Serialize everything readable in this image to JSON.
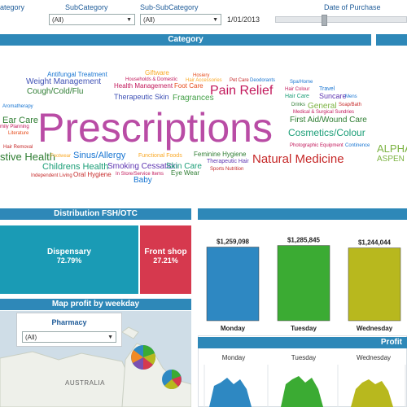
{
  "filters": {
    "category_label": "ategory",
    "subcategory_label": "SubCategory",
    "subcategory_value": "(All)",
    "subsubcategory_label": "Sub-SubCategory",
    "subsubcategory_value": "(All)",
    "date_value": "1/01/2013",
    "date_label": "Date of Purchase"
  },
  "category_panel": {
    "title": "Category",
    "words": [
      {
        "text": "Prescriptions",
        "color": "#b94ca5"
      },
      {
        "text": "Pain Relief",
        "color": "#c2185b"
      },
      {
        "text": "Natural Medicine",
        "color": "#c62828"
      },
      {
        "text": "Sinus/Allergy",
        "color": "#1976d2"
      },
      {
        "text": "Cosmetics/Colour",
        "color": "#1b9e77"
      },
      {
        "text": "First Aid/Wound Care",
        "color": "#2e7d32"
      },
      {
        "text": "Cough/Cold/Flu",
        "color": "#2e7d32"
      },
      {
        "text": "Weight Management",
        "color": "#3f51b5"
      },
      {
        "text": "Childrens Health",
        "color": "#1b9e77"
      },
      {
        "text": "stive Health",
        "color": "#2e7d32"
      },
      {
        "text": "Ear Care",
        "color": "#2e7d32"
      },
      {
        "text": "General",
        "color": "#7cb342"
      },
      {
        "text": "ALPHA",
        "color": "#7cb342"
      },
      {
        "text": "ASPEN",
        "color": "#7cb342"
      },
      {
        "text": "Fragrances",
        "color": "#43a047"
      },
      {
        "text": "Therapeutic Skin",
        "color": "#3f51b5"
      },
      {
        "text": "Antifungal Treatment",
        "color": "#1976d2"
      },
      {
        "text": "Giftware",
        "color": "#f9a825"
      },
      {
        "text": "Health Management",
        "color": "#c2185b"
      },
      {
        "text": "Foot Care",
        "color": "#e64a19"
      },
      {
        "text": "Smoking Cessation",
        "color": "#5e35b1"
      },
      {
        "text": "Skin Care",
        "color": "#1b9e77"
      },
      {
        "text": "Baby",
        "color": "#1976d2"
      },
      {
        "text": "Oral Hygiene",
        "color": "#c62828"
      },
      {
        "text": "Eye Wear",
        "color": "#2e7d32"
      },
      {
        "text": "Feminine Hygiene",
        "color": "#2e7d32"
      },
      {
        "text": "Functional Foods",
        "color": "#f9a825"
      },
      {
        "text": "Suncare",
        "color": "#5e35b1"
      },
      {
        "text": "Hair Care",
        "color": "#1b9e77"
      },
      {
        "text": "Travel",
        "color": "#1976d2"
      },
      {
        "text": "Hosiery",
        "color": "#e64a19"
      },
      {
        "text": "Households & Domestic",
        "color": "#c2185b"
      },
      {
        "text": "Hair Accessories",
        "color": "#f9a825"
      },
      {
        "text": "Pet Care",
        "color": "#c62828"
      },
      {
        "text": "Deodorants",
        "color": "#1976d2"
      },
      {
        "text": "Spa/Home",
        "color": "#1976d2"
      },
      {
        "text": "Hair Colour",
        "color": "#c2185b"
      },
      {
        "text": "Drinks",
        "color": "#2e7d32"
      },
      {
        "text": "Soap/Bath",
        "color": "#c62828"
      },
      {
        "text": "Medical & Surgical Sundries",
        "color": "#c2185b"
      },
      {
        "text": "Mens",
        "color": "#1976d2"
      },
      {
        "text": "Photographic Equipment",
        "color": "#c2185b"
      },
      {
        "text": "Continence",
        "color": "#1976d2"
      },
      {
        "text": "Therapeutic Hair",
        "color": "#5e35b1"
      },
      {
        "text": "Sports Nutrition",
        "color": "#c62828"
      },
      {
        "text": "Aromatherapy",
        "color": "#1976d2"
      },
      {
        "text": "mily Planning",
        "color": "#c2185b"
      },
      {
        "text": "Literature",
        "color": "#e64a19"
      },
      {
        "text": "Hair Removal",
        "color": "#c62828"
      },
      {
        "text": "Footwear",
        "color": "#f9a825"
      },
      {
        "text": "Independent Living",
        "color": "#c62828"
      },
      {
        "text": "In Store/Service Items",
        "color": "#c2185b"
      }
    ]
  },
  "distribution": {
    "title": "Distribution FSH/OTC",
    "dispensary": {
      "label": "Dispensary",
      "pct": "72.79%",
      "share": 0.7279,
      "color": "#1a9bb5"
    },
    "frontshop": {
      "label": "Front shop",
      "pct": "27.21%",
      "share": 0.2721,
      "color": "#d6394e"
    }
  },
  "weekday_chart": {
    "chart_data": {
      "type": "bar",
      "categories": [
        "Monday",
        "Tuesday",
        "Wednesday"
      ],
      "values": [
        1259098,
        1285845,
        1244044
      ],
      "value_labels": [
        "$1,259,098",
        "$1,285,845",
        "$1,244,044"
      ],
      "colors": [
        "#2e88c2",
        "#3bab33",
        "#b8b81e"
      ],
      "ylim": [
        0,
        1600000
      ]
    }
  },
  "map_panel": {
    "title": "Map profit by weekday",
    "filter_label": "Pharmacy",
    "filter_value": "(All)",
    "country_label": "AUSTRALIA"
  },
  "profit_panel": {
    "title": "Profit",
    "days": [
      "Monday",
      "Tuesday",
      "Wednesday"
    ]
  }
}
